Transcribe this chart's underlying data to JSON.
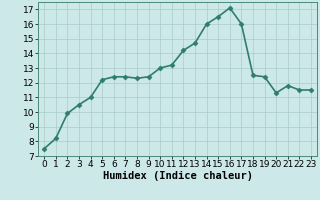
{
  "x": [
    0,
    1,
    2,
    3,
    4,
    5,
    6,
    7,
    8,
    9,
    10,
    11,
    12,
    13,
    14,
    15,
    16,
    17,
    18,
    19,
    20,
    21,
    22,
    23
  ],
  "y": [
    7.5,
    8.2,
    9.9,
    10.5,
    11.0,
    12.2,
    12.4,
    12.4,
    12.3,
    12.4,
    13.0,
    13.2,
    14.2,
    14.7,
    16.0,
    16.5,
    17.1,
    16.0,
    12.5,
    12.4,
    11.3,
    11.8,
    11.5,
    11.5
  ],
  "line_color": "#2e7d6e",
  "marker": "D",
  "marker_size": 2.5,
  "bg_color": "#cde8e8",
  "grid_color": "#aacccc",
  "xlabel": "Humidex (Indice chaleur)",
  "xlim": [
    -0.5,
    23.5
  ],
  "ylim": [
    7,
    17.5
  ],
  "yticks": [
    7,
    8,
    9,
    10,
    11,
    12,
    13,
    14,
    15,
    16,
    17
  ],
  "xticks": [
    0,
    1,
    2,
    3,
    4,
    5,
    6,
    7,
    8,
    9,
    10,
    11,
    12,
    13,
    14,
    15,
    16,
    17,
    18,
    19,
    20,
    21,
    22,
    23
  ],
  "xlabel_fontsize": 7.5,
  "tick_fontsize": 6.5,
  "line_width": 1.2
}
